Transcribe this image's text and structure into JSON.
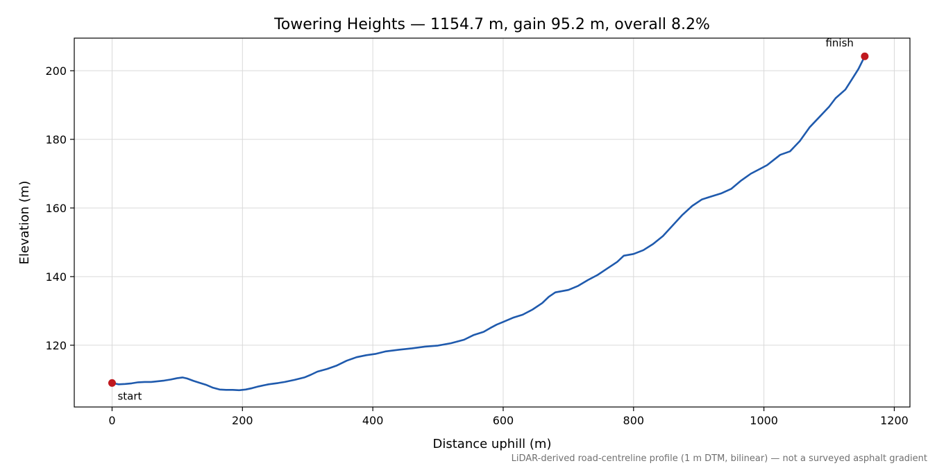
{
  "chart_data": {
    "type": "line",
    "title": "Towering Heights — 1154.7 m, gain 95.2 m, overall 8.2%",
    "xlabel": "Distance uphill (m)",
    "ylabel": "Elevation (m)",
    "xlim": [
      -58,
      1224
    ],
    "ylim": [
      102,
      209.5
    ],
    "x_ticks": [
      0,
      200,
      400,
      600,
      800,
      1000,
      1200
    ],
    "y_ticks": [
      120,
      140,
      160,
      180,
      200
    ],
    "grid": true,
    "line_color": "#1f5aad",
    "marker_color": "#c0191f",
    "series": [
      {
        "points": [
          [
            0,
            109.0
          ],
          [
            10,
            108.6
          ],
          [
            20,
            108.7
          ],
          [
            30,
            108.9
          ],
          [
            40,
            109.2
          ],
          [
            50,
            109.3
          ],
          [
            60,
            109.3
          ],
          [
            70,
            109.5
          ],
          [
            80,
            109.7
          ],
          [
            90,
            110.0
          ],
          [
            100,
            110.4
          ],
          [
            108,
            110.6
          ],
          [
            115,
            110.3
          ],
          [
            125,
            109.6
          ],
          [
            135,
            109.0
          ],
          [
            145,
            108.4
          ],
          [
            155,
            107.6
          ],
          [
            165,
            107.1
          ],
          [
            175,
            107.0
          ],
          [
            185,
            107.0
          ],
          [
            195,
            106.9
          ],
          [
            205,
            107.1
          ],
          [
            215,
            107.5
          ],
          [
            225,
            108.0
          ],
          [
            240,
            108.6
          ],
          [
            255,
            109.0
          ],
          [
            265,
            109.3
          ],
          [
            280,
            109.9
          ],
          [
            295,
            110.6
          ],
          [
            305,
            111.4
          ],
          [
            315,
            112.3
          ],
          [
            330,
            113.1
          ],
          [
            345,
            114.1
          ],
          [
            360,
            115.5
          ],
          [
            375,
            116.5
          ],
          [
            390,
            117.1
          ],
          [
            405,
            117.5
          ],
          [
            420,
            118.2
          ],
          [
            440,
            118.7
          ],
          [
            460,
            119.1
          ],
          [
            480,
            119.6
          ],
          [
            500,
            119.9
          ],
          [
            520,
            120.6
          ],
          [
            540,
            121.6
          ],
          [
            555,
            123.0
          ],
          [
            570,
            123.9
          ],
          [
            580,
            125.0
          ],
          [
            590,
            126.0
          ],
          [
            600,
            126.8
          ],
          [
            615,
            128.0
          ],
          [
            630,
            128.9
          ],
          [
            645,
            130.4
          ],
          [
            660,
            132.3
          ],
          [
            670,
            134.1
          ],
          [
            680,
            135.4
          ],
          [
            700,
            136.1
          ],
          [
            715,
            137.3
          ],
          [
            730,
            139.0
          ],
          [
            745,
            140.5
          ],
          [
            760,
            142.4
          ],
          [
            775,
            144.3
          ],
          [
            785,
            146.1
          ],
          [
            800,
            146.6
          ],
          [
            815,
            147.7
          ],
          [
            830,
            149.5
          ],
          [
            845,
            151.8
          ],
          [
            860,
            154.9
          ],
          [
            875,
            158.0
          ],
          [
            890,
            160.6
          ],
          [
            905,
            162.5
          ],
          [
            920,
            163.4
          ],
          [
            935,
            164.3
          ],
          [
            950,
            165.6
          ],
          [
            965,
            168.0
          ],
          [
            980,
            170.0
          ],
          [
            995,
            171.5
          ],
          [
            1005,
            172.5
          ],
          [
            1015,
            174.0
          ],
          [
            1025,
            175.5
          ],
          [
            1040,
            176.5
          ],
          [
            1055,
            179.5
          ],
          [
            1070,
            183.5
          ],
          [
            1085,
            186.5
          ],
          [
            1100,
            189.5
          ],
          [
            1110,
            192.0
          ],
          [
            1125,
            194.5
          ],
          [
            1135,
            197.5
          ],
          [
            1145,
            200.5
          ],
          [
            1154.7,
            204.2
          ]
        ]
      }
    ],
    "annotations": [
      {
        "text": "start",
        "x": 0,
        "y": 109.0
      },
      {
        "text": "finish",
        "x": 1154.7,
        "y": 204.2
      }
    ],
    "footnote": "LiDAR-derived road-centreline profile (1 m DTM, bilinear) — not a surveyed asphalt gradient"
  }
}
